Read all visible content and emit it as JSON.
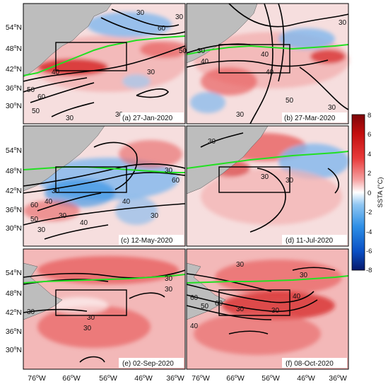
{
  "figure": {
    "y_ticks": [
      "54",
      "48",
      "42",
      "36",
      "30"
    ],
    "y_hemisphere": "N",
    "x_ticks": [
      "76",
      "66",
      "56",
      "46",
      "36"
    ],
    "x_hemisphere": "W",
    "degree_symbol": "o"
  },
  "panels": [
    {
      "label": "(a) 27-Jan-2020",
      "contour_labels": [
        "30",
        "60",
        "30",
        "50",
        "40",
        "50",
        "60",
        "30",
        "50",
        "30",
        "30"
      ]
    },
    {
      "label": "(b) 27-Mar-2020",
      "contour_labels": [
        "30",
        "40",
        "40",
        "40",
        "30",
        "30",
        "50",
        "30"
      ]
    },
    {
      "label": "(c) 12-May-2020",
      "contour_labels": [
        "30",
        "60",
        "40",
        "30",
        "60",
        "30",
        "40",
        "30",
        "40",
        "30",
        "50"
      ]
    },
    {
      "label": "(d) 11-Jul-2020",
      "contour_labels": [
        "30",
        "30",
        "30"
      ]
    },
    {
      "label": "(e) 02-Sep-2020",
      "contour_labels": [
        "30",
        "30",
        "30",
        "30",
        "30"
      ]
    },
    {
      "label": "(f) 08-Oct-2020",
      "contour_labels": [
        "30",
        "30",
        "60",
        "40",
        "50",
        "30",
        "40",
        "30",
        "60"
      ]
    }
  ],
  "colorbar": {
    "title": "SSTA (°C)",
    "ticks": [
      "8",
      "6",
      "4",
      "2",
      "0",
      "-2",
      "-4",
      "-6",
      "-8"
    ],
    "min": -8,
    "max": 8,
    "colors": [
      "#08196b",
      "#0a4fc4",
      "#2e8fe6",
      "#8fc6f2",
      "#ffffff",
      "#f5a3a3",
      "#e83a3a",
      "#c20e0e",
      "#7d0508"
    ]
  },
  "colors": {
    "land": "#bdbdbd",
    "ocean_base": "#f6dede",
    "green_line": "#22e022",
    "contour": "#000000",
    "box": "#000000"
  }
}
